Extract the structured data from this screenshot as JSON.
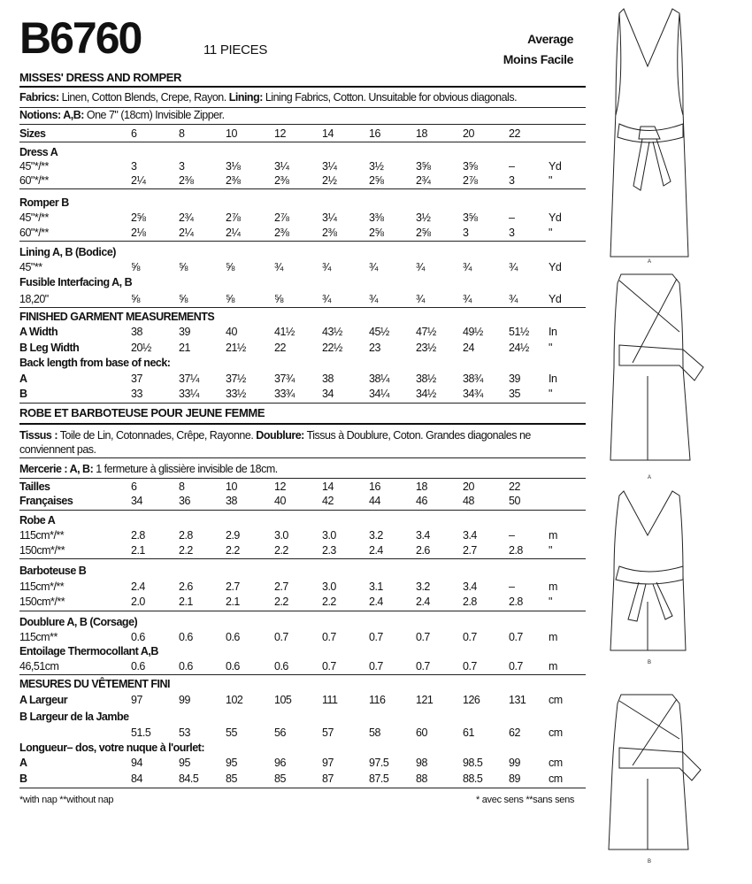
{
  "header": {
    "pattern_number": "B6760",
    "pieces": "11 PIECES",
    "difficulty_en": "Average",
    "difficulty_fr": "Moins Facile"
  },
  "english": {
    "title": "MISSES' DRESS AND ROMPER",
    "fabrics_label": "Fabrics:",
    "fabrics": "Linen, Cotton Blends, Crepe, Rayon.",
    "lining_label": "Lining:",
    "lining": "Lining Fabrics, Cotton. Unsuitable for obvious diagonals.",
    "notions_label": "Notions: A,B:",
    "notions": "One 7\" (18cm) Invisible Zipper.",
    "rows": [
      {
        "label": "Sizes",
        "bold": true,
        "values": [
          "6",
          "8",
          "10",
          "12",
          "14",
          "16",
          "18",
          "20",
          "22"
        ],
        "unit": ""
      },
      {
        "label": "Dress A",
        "bold": true,
        "values": [],
        "unit": ""
      },
      {
        "label": "45\"*/**",
        "values": [
          "3",
          "3",
          "3⅛",
          "3¼",
          "3¼",
          "3½",
          "3⅝",
          "3⅝",
          "–"
        ],
        "unit": "Yd"
      },
      {
        "label": "60\"*/**",
        "values": [
          "2¼",
          "2⅜",
          "2⅜",
          "2⅜",
          "2½",
          "2⅝",
          "2¾",
          "2⅞",
          "3"
        ],
        "unit": "\""
      },
      {
        "label": "Romper B",
        "bold": true,
        "values": [],
        "unit": ""
      },
      {
        "label": "45\"*/**",
        "values": [
          "2⅝",
          "2¾",
          "2⅞",
          "2⅞",
          "3¼",
          "3⅜",
          "3½",
          "3⅝",
          "–"
        ],
        "unit": "Yd"
      },
      {
        "label": "60\"*/**",
        "values": [
          "2⅛",
          "2¼",
          "2¼",
          "2⅜",
          "2⅜",
          "2⅝",
          "2⅝",
          "3",
          "3"
        ],
        "unit": "\""
      },
      {
        "label": "Lining A, B (Bodice)",
        "bold": true,
        "values": [],
        "unit": ""
      },
      {
        "label": "45\"**",
        "values": [
          "⅝",
          "⅝",
          "⅝",
          "¾",
          "¾",
          "¾",
          "¾",
          "¾",
          "¾"
        ],
        "unit": "Yd"
      },
      {
        "label": "Fusible Interfacing A, B",
        "bold": true,
        "values": [],
        "unit": ""
      },
      {
        "label": "18,20\"",
        "values": [
          "⅝",
          "⅝",
          "⅝",
          "⅝",
          "¾",
          "¾",
          "¾",
          "¾",
          "¾"
        ],
        "unit": "Yd"
      },
      {
        "label": "FINISHED GARMENT MEASUREMENTS",
        "bold": true,
        "values": [],
        "unit": ""
      },
      {
        "label": "A Width",
        "bold": true,
        "values": [
          "38",
          "39",
          "40",
          "41½",
          "43½",
          "45½",
          "47½",
          "49½",
          "51½"
        ],
        "unit": "In"
      },
      {
        "label": "B Leg Width",
        "bold": true,
        "values": [
          "20½",
          "21",
          "21½",
          "22",
          "22½",
          "23",
          "23½",
          "24",
          "24½"
        ],
        "unit": "\""
      },
      {
        "label": "Back length from base of neck:",
        "bold": true,
        "values": [],
        "unit": ""
      },
      {
        "label": "A",
        "bold": true,
        "values": [
          "37",
          "37¼",
          "37½",
          "37¾",
          "38",
          "38¼",
          "38½",
          "38¾",
          "39"
        ],
        "unit": "In"
      },
      {
        "label": "B",
        "bold": true,
        "values": [
          "33",
          "33¼",
          "33½",
          "33¾",
          "34",
          "34¼",
          "34½",
          "34¾",
          "35"
        ],
        "unit": "\""
      }
    ]
  },
  "french": {
    "title": "ROBE ET BARBOTEUSE POUR JEUNE FEMME",
    "tissus_label": "Tissus :",
    "tissus": "Toile de Lin, Cotonnades, Crêpe, Rayonne.",
    "doublure_label": "Doublure:",
    "doublure": "Tissus à Doublure, Coton. Grandes diagonales ne conviennent pas.",
    "mercerie_label": "Mercerie : A, B:",
    "mercerie": "1 fermeture à glissière invisible de 18cm.",
    "rows": [
      {
        "label": "Tailles",
        "bold": true,
        "values": [
          "6",
          "8",
          "10",
          "12",
          "14",
          "16",
          "18",
          "20",
          "22"
        ],
        "unit": ""
      },
      {
        "label": "Françaises",
        "bold": true,
        "values": [
          "34",
          "36",
          "38",
          "40",
          "42",
          "44",
          "46",
          "48",
          "50"
        ],
        "unit": ""
      },
      {
        "label": "Robe A",
        "bold": true,
        "values": [],
        "unit": ""
      },
      {
        "label": "115cm*/**",
        "values": [
          "2.8",
          "2.8",
          "2.9",
          "3.0",
          "3.0",
          "3.2",
          "3.4",
          "3.4",
          "–"
        ],
        "unit": "m"
      },
      {
        "label": "150cm*/**",
        "values": [
          "2.1",
          "2.2",
          "2.2",
          "2.2",
          "2.3",
          "2.4",
          "2.6",
          "2.7",
          "2.8"
        ],
        "unit": "\""
      },
      {
        "label": "Barboteuse B",
        "bold": true,
        "values": [],
        "unit": ""
      },
      {
        "label": "115cm*/**",
        "values": [
          "2.4",
          "2.6",
          "2.7",
          "2.7",
          "3.0",
          "3.1",
          "3.2",
          "3.4",
          "–"
        ],
        "unit": "m"
      },
      {
        "label": "150cm*/**",
        "values": [
          "2.0",
          "2.1",
          "2.1",
          "2.2",
          "2.2",
          "2.4",
          "2.4",
          "2.8",
          "2.8"
        ],
        "unit": "\""
      },
      {
        "label": "Doublure A, B (Corsage)",
        "bold": true,
        "values": [],
        "unit": ""
      },
      {
        "label": "115cm**",
        "values": [
          "0.6",
          "0.6",
          "0.6",
          "0.7",
          "0.7",
          "0.7",
          "0.7",
          "0.7",
          "0.7"
        ],
        "unit": "m"
      },
      {
        "label": "Entoilage Thermocollant A,B",
        "bold": true,
        "values": [],
        "unit": ""
      },
      {
        "label": "46,51cm",
        "values": [
          "0.6",
          "0.6",
          "0.6",
          "0.6",
          "0.7",
          "0.7",
          "0.7",
          "0.7",
          "0.7"
        ],
        "unit": "m"
      },
      {
        "label": "MESURES DU VÊTEMENT FINI",
        "bold": true,
        "values": [],
        "unit": ""
      },
      {
        "label": "A Largeur",
        "bold": true,
        "values": [
          "97",
          "99",
          "102",
          "105",
          "111",
          "116",
          "121",
          "126",
          "131"
        ],
        "unit": "cm"
      },
      {
        "label": "B Largeur de la Jambe",
        "bold": true,
        "values": [],
        "unit": ""
      },
      {
        "label": "",
        "values": [
          "51.5",
          "53",
          "55",
          "56",
          "57",
          "58",
          "60",
          "61",
          "62"
        ],
        "unit": "cm"
      },
      {
        "label": "Longueur– dos, votre nuque à l'ourlet:",
        "bold": true,
        "values": [],
        "unit": ""
      },
      {
        "label": "A",
        "bold": true,
        "values": [
          "94",
          "95",
          "95",
          "96",
          "97",
          "97.5",
          "98",
          "98.5",
          "99"
        ],
        "unit": "cm"
      },
      {
        "label": "B",
        "bold": true,
        "values": [
          "84",
          "84.5",
          "85",
          "85",
          "87",
          "87.5",
          "88",
          "88.5",
          "89"
        ],
        "unit": "cm"
      }
    ]
  },
  "footnotes": {
    "en": "*with nap  **without nap",
    "fr": "* avec sens  **sans sens"
  },
  "illustrations": {
    "labels": [
      "A",
      "A",
      "B",
      "B"
    ]
  }
}
